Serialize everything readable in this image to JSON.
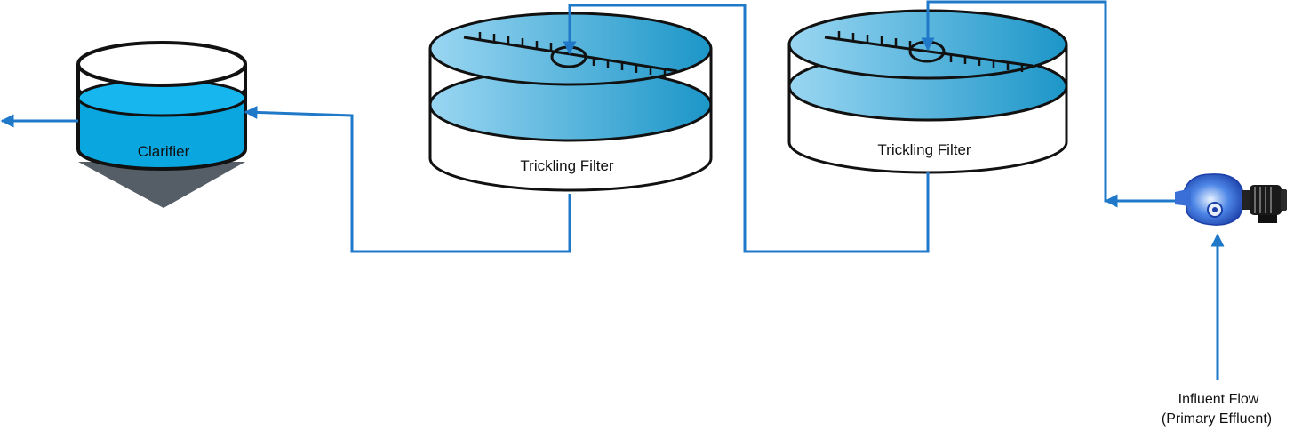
{
  "labels": {
    "clarifier": "Clarifier",
    "filter_1": "Trickling Filter",
    "filter_2": "Trickling Filter",
    "influent_line1": "Influent Flow",
    "influent_line2": "(Primary Effluent)"
  },
  "colors": {
    "pipe": "#1f78c8",
    "water_light": "#8ecfee",
    "water_dark": "#1f9ccb",
    "clarifier_water": "#0aa6e0",
    "sludge_cone": "#555d66",
    "outline": "#111111"
  },
  "icons": [
    "pump-icon",
    "motor-icon",
    "arrow-icon"
  ]
}
